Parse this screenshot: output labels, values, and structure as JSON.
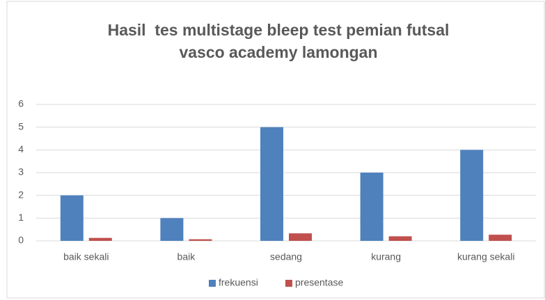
{
  "chart_data": {
    "type": "bar",
    "title": [
      "Hasil  tes multistage bleep test pemian futsal",
      "vasco academy lamongan"
    ],
    "categories": [
      "baik sekali",
      "baik",
      "sedang",
      "kurang",
      "kurang sekali"
    ],
    "series": [
      {
        "name": "frekuensi",
        "color": "#4f81bd",
        "values": [
          2,
          1,
          5,
          3,
          4
        ]
      },
      {
        "name": "presentase",
        "color": "#c0504d",
        "values": [
          0.13,
          0.07,
          0.33,
          0.2,
          0.27
        ]
      }
    ],
    "ylim": [
      0,
      6
    ],
    "yticks": [
      0,
      1,
      2,
      3,
      4,
      5,
      6
    ],
    "grid": true,
    "legend": "bottom"
  }
}
